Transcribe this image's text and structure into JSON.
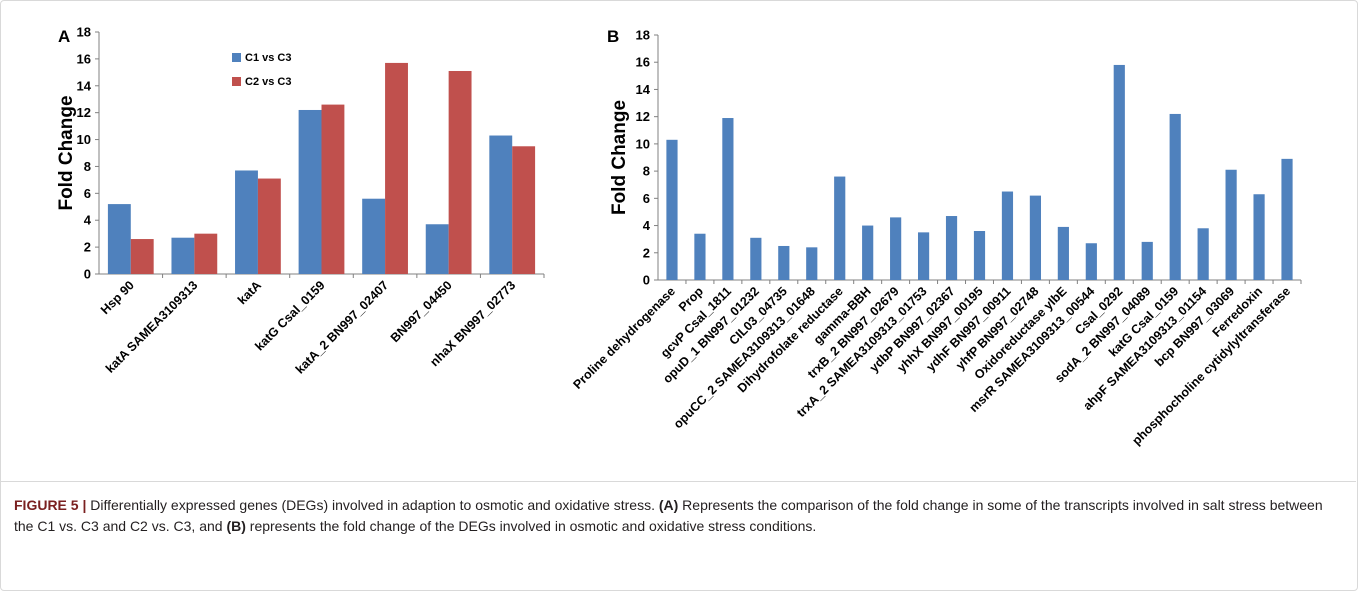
{
  "colors": {
    "series1": "#4f81bd",
    "series2": "#c0504d",
    "axis": "#808080",
    "text": "#000000"
  },
  "chart_data": [
    {
      "panel_label": "A",
      "type": "bar",
      "ylabel": "Fold Change",
      "ylim": [
        0,
        18
      ],
      "yticks": [
        "0",
        "2",
        "4",
        "6",
        "8",
        "10",
        "12",
        "14",
        "16",
        "18"
      ],
      "grid": false,
      "legend_position": "top-left-inside",
      "categories": [
        "Hsp 90",
        "katA SAMEA3109313",
        "katA",
        "katG Csal_0159",
        "katA_2 BN997_02407",
        "BN997_04450",
        "nhaX BN997_02773"
      ],
      "series": [
        {
          "name": "C1 vs C3",
          "color": "#4f81bd",
          "values": [
            5.2,
            2.7,
            7.7,
            12.2,
            5.6,
            3.7,
            10.3
          ]
        },
        {
          "name": "C2 vs C3",
          "color": "#c0504d",
          "values": [
            2.6,
            3.0,
            7.1,
            12.6,
            15.7,
            15.1,
            9.5
          ]
        }
      ]
    },
    {
      "panel_label": "B",
      "type": "bar",
      "ylabel": "Fold Change",
      "ylim": [
        0,
        18
      ],
      "yticks": [
        "0",
        "2",
        "4",
        "6",
        "8",
        "10",
        "12",
        "14",
        "16",
        "18"
      ],
      "grid": false,
      "categories": [
        "Proline dehydrogenase",
        "Prop",
        "gcvP Csal_1811",
        "opuD_1 BN997_01232",
        "CIL03_04735",
        "opuCC_2 SAMEA3109313_01648",
        "Dihydrofolate reductase",
        "gamma-BBH",
        "trxB_2 BN997_02679",
        "trxA_2 SAMEA3109313_01753",
        "ydbP BN997_02367",
        "yhhX BN997_00195",
        "ydhF BN997_00911",
        "yhfP BN997_02748",
        "Oxidoreductase ylbE",
        "msrR SAMEA3109313_00544",
        "Csal_0292",
        "sodA_2 BN997_04089",
        "katG Csal_0159",
        "ahpF SAMEA3109313_01154",
        "bcp BN997_03069",
        "Ferredoxin",
        "phosphocholine cytidylyltransferase"
      ],
      "series": [
        {
          "color": "#4f81bd",
          "values": [
            10.3,
            3.4,
            11.9,
            3.1,
            2.5,
            2.4,
            7.6,
            4.0,
            4.6,
            3.5,
            4.7,
            3.6,
            6.5,
            6.2,
            3.9,
            2.7,
            15.8,
            2.8,
            12.2,
            3.8,
            8.1,
            6.3,
            8.9
          ]
        }
      ]
    }
  ],
  "caption": {
    "figure_label": "FIGURE 5 |",
    "text_1": " Differentially expressed genes (DEGs) involved in adaption to osmotic and oxidative stress. ",
    "label_a": "(A)",
    "text_2": " Represents the comparison of the fold change in some of the transcripts involved in salt stress between the C1 vs. C3 and C2 vs. C3, and ",
    "label_b": "(B)",
    "text_3": " represents the fold change of the DEGs involved in osmotic and oxidative stress conditions."
  }
}
